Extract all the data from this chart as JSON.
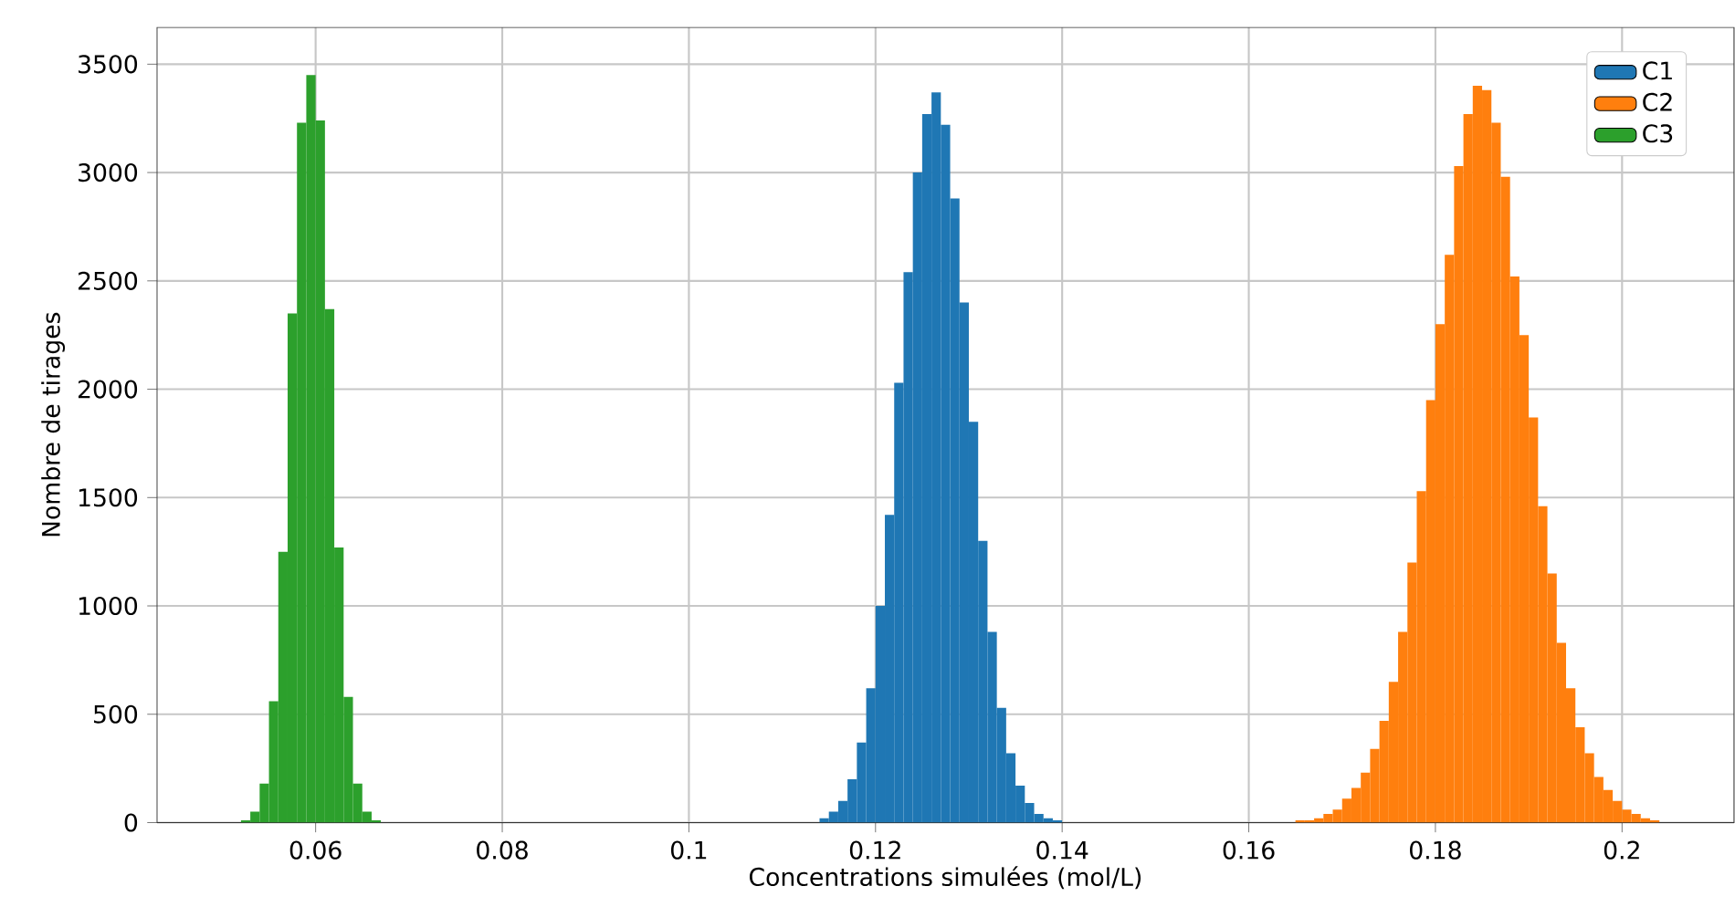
{
  "chart_data": {
    "type": "histogram",
    "xlabel": "Concentrations simulées (mol/L)",
    "ylabel": "Nombre de tirages",
    "xlim": [
      0.043,
      0.212
    ],
    "ylim": [
      0,
      3670
    ],
    "xticks": [
      0.06,
      0.08,
      0.1,
      0.12,
      0.14,
      0.16,
      0.18,
      0.2
    ],
    "yticks": [
      0,
      500,
      1000,
      1500,
      2000,
      2500,
      3000,
      3500
    ],
    "grid": true,
    "legend": "top right",
    "bins": [
      0.052,
      0.053,
      0.054,
      0.055,
      0.056,
      0.057,
      0.058,
      0.059,
      0.06,
      0.061,
      0.062,
      0.063,
      0.064,
      0.065,
      0.066,
      0.067,
      0.068,
      0.069,
      0.07,
      0.071,
      0.072,
      0.073,
      0.074,
      0.075,
      0.076,
      0.077,
      0.078,
      0.079,
      0.08,
      0.081,
      0.082,
      0.083,
      0.084,
      0.085,
      0.086,
      0.087,
      0.088,
      0.089,
      0.09,
      0.091,
      0.092,
      0.093,
      0.094,
      0.095,
      0.096,
      0.097,
      0.098,
      0.099,
      0.1,
      0.101,
      0.102,
      0.103,
      0.104,
      0.105,
      0.106,
      0.107,
      0.108,
      0.109,
      0.11,
      0.111,
      0.112,
      0.113,
      0.114,
      0.115,
      0.116,
      0.117,
      0.118,
      0.119,
      0.12,
      0.121,
      0.122,
      0.123,
      0.124,
      0.125,
      0.126,
      0.127,
      0.128,
      0.129,
      0.13,
      0.131,
      0.132,
      0.133,
      0.134,
      0.135,
      0.136,
      0.137,
      0.138,
      0.139,
      0.14,
      0.141,
      0.142,
      0.143,
      0.144,
      0.145,
      0.146,
      0.147,
      0.148,
      0.149,
      0.15,
      0.151,
      0.152,
      0.153,
      0.154,
      0.155,
      0.156,
      0.157,
      0.158,
      0.159,
      0.16,
      0.161,
      0.162,
      0.163,
      0.164,
      0.165,
      0.166,
      0.167,
      0.168,
      0.169,
      0.17,
      0.171,
      0.172,
      0.173,
      0.174,
      0.175,
      0.176,
      0.177,
      0.178,
      0.179,
      0.18,
      0.181,
      0.182,
      0.183,
      0.184,
      0.185,
      0.186,
      0.187,
      0.188,
      0.189,
      0.19,
      0.191,
      0.192,
      0.193,
      0.194,
      0.195,
      0.196,
      0.197,
      0.198,
      0.199,
      0.2,
      0.201,
      0.202,
      0.203,
      0.204
    ],
    "series": [
      {
        "name": "C1",
        "color": "#1f77b4",
        "values": [
          null,
          null,
          null,
          null,
          null,
          null,
          null,
          null,
          null,
          null,
          null,
          null,
          null,
          null,
          null,
          null,
          null,
          null,
          null,
          null,
          null,
          null,
          null,
          null,
          null,
          null,
          null,
          null,
          null,
          null,
          null,
          null,
          null,
          null,
          null,
          null,
          null,
          null,
          null,
          null,
          null,
          null,
          null,
          null,
          null,
          null,
          null,
          null,
          null,
          null,
          null,
          null,
          null,
          null,
          null,
          null,
          null,
          null,
          null,
          null,
          null,
          null,
          20,
          50,
          100,
          200,
          370,
          620,
          1000,
          1420,
          2030,
          2540,
          3000,
          3270,
          3370,
          3220,
          2880,
          2400,
          1850,
          1300,
          880,
          530,
          320,
          170,
          90,
          40,
          20,
          10,
          null,
          null,
          null,
          null,
          null,
          null,
          null,
          null,
          null,
          null,
          null,
          null,
          null,
          null,
          null,
          null,
          null,
          null,
          null,
          null,
          null,
          null,
          null,
          null,
          null,
          null,
          null,
          null,
          null,
          null,
          null,
          null,
          null,
          null,
          null,
          null,
          null,
          null,
          null,
          null,
          null,
          null,
          null,
          null,
          null,
          null,
          null,
          null,
          null,
          null,
          null,
          null,
          null,
          null,
          null,
          null,
          null,
          null,
          null,
          null,
          null,
          null,
          null,
          null
        ]
      },
      {
        "name": "C2",
        "color": "#ff7f0e",
        "values": [
          null,
          null,
          null,
          null,
          null,
          null,
          null,
          null,
          null,
          null,
          null,
          null,
          null,
          null,
          null,
          null,
          null,
          null,
          null,
          null,
          null,
          null,
          null,
          null,
          null,
          null,
          null,
          null,
          null,
          null,
          null,
          null,
          null,
          null,
          null,
          null,
          null,
          null,
          null,
          null,
          null,
          null,
          null,
          null,
          null,
          null,
          null,
          null,
          null,
          null,
          null,
          null,
          null,
          null,
          null,
          null,
          null,
          null,
          null,
          null,
          null,
          null,
          null,
          null,
          null,
          null,
          null,
          null,
          null,
          null,
          null,
          null,
          null,
          null,
          null,
          null,
          null,
          null,
          null,
          null,
          null,
          null,
          null,
          null,
          null,
          null,
          null,
          null,
          null,
          null,
          null,
          null,
          null,
          null,
          null,
          null,
          null,
          null,
          null,
          null,
          null,
          null,
          null,
          null,
          null,
          null,
          null,
          null,
          null,
          null,
          null,
          null,
          null,
          10,
          10,
          20,
          40,
          60,
          110,
          160,
          230,
          340,
          470,
          650,
          880,
          1200,
          1530,
          1950,
          2300,
          2620,
          3030,
          3270,
          3400,
          3380,
          3230,
          2980,
          2520,
          2250,
          1870,
          1460,
          1150,
          830,
          620,
          440,
          320,
          210,
          150,
          100,
          60,
          40,
          20,
          10
        ]
      },
      {
        "name": "C3",
        "color": "#2ca02c",
        "values": [
          10,
          50,
          180,
          560,
          1250,
          2350,
          3230,
          3450,
          3240,
          2370,
          1270,
          580,
          180,
          50,
          10,
          null,
          null,
          null,
          null,
          null,
          null,
          null,
          null,
          null,
          null,
          null,
          null,
          null,
          null,
          null,
          null,
          null,
          null,
          null,
          null,
          null,
          null,
          null,
          null,
          null,
          null,
          null,
          null,
          null,
          null,
          null,
          null,
          null,
          null,
          null,
          null,
          null,
          null,
          null,
          null,
          null,
          null,
          null,
          null,
          null,
          null,
          null,
          null,
          null,
          null,
          null,
          null,
          null,
          null,
          null,
          null,
          null,
          null,
          null,
          null,
          null,
          null,
          null,
          null,
          null,
          null,
          null,
          null,
          null,
          null,
          null,
          null,
          null,
          null,
          null,
          null,
          null,
          null,
          null,
          null,
          null,
          null,
          null,
          null,
          null,
          null,
          null,
          null,
          null,
          null,
          null,
          null,
          null,
          null,
          null,
          null,
          null,
          null,
          null,
          null,
          null,
          null,
          null,
          null,
          null,
          null,
          null,
          null,
          null,
          null,
          null,
          null,
          null,
          null,
          null,
          null,
          null,
          null,
          null,
          null,
          null,
          null,
          null,
          null,
          null,
          null,
          null,
          null,
          null,
          null,
          null,
          null,
          null,
          null,
          null,
          null,
          null
        ]
      }
    ]
  }
}
